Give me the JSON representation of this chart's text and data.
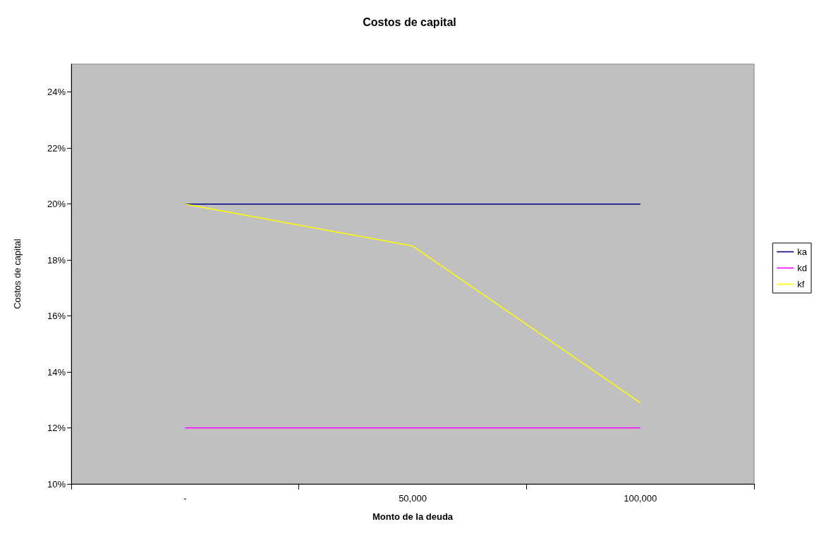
{
  "chart_data": {
    "type": "line",
    "title": "Costos de capital",
    "xlabel": "Monto de la deuda",
    "ylabel": "Costos de capital",
    "categories": [
      "-",
      "50,000",
      "100,000"
    ],
    "series": [
      {
        "name": "ka",
        "color": "#000080",
        "values": [
          20,
          20,
          20
        ]
      },
      {
        "name": "kd",
        "color": "#ff00ff",
        "values": [
          12,
          12,
          12
        ]
      },
      {
        "name": "kf",
        "color": "#ffff00",
        "values": [
          20,
          18.5,
          12.9
        ]
      }
    ],
    "ylim": [
      10,
      25
    ],
    "yticks": [
      {
        "value": 10,
        "label": "10%"
      },
      {
        "value": 12,
        "label": "12%"
      },
      {
        "value": 14,
        "label": "14%"
      },
      {
        "value": 16,
        "label": "16%"
      },
      {
        "value": 18,
        "label": "18%"
      },
      {
        "value": 20,
        "label": "20%"
      },
      {
        "value": 22,
        "label": "22%"
      },
      {
        "value": 24,
        "label": "24%"
      }
    ],
    "grid": false,
    "legend": "right",
    "marker": "none",
    "line_style": "solid"
  }
}
